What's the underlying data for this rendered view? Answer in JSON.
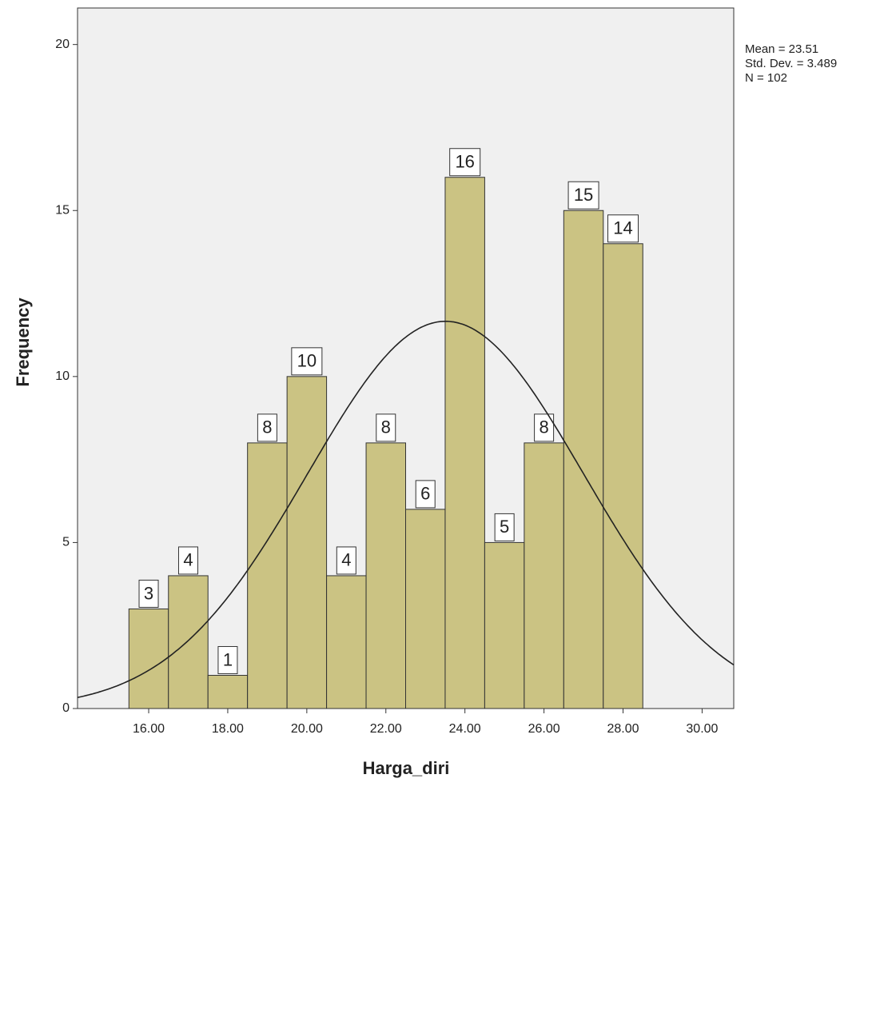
{
  "chart_data": {
    "type": "histogram",
    "x_label": "Harga_diri",
    "y_label": "Frequency",
    "bins": [
      15.5,
      16.5,
      17.5,
      18.5,
      19.5,
      20.5,
      21.5,
      22.5,
      23.5,
      24.5,
      25.5,
      26.5,
      27.5,
      28.5
    ],
    "values": [
      3,
      4,
      1,
      8,
      10,
      4,
      8,
      6,
      16,
      5,
      8,
      15,
      14
    ],
    "color": "#cbc383",
    "xlim": [
      14.2,
      30.8
    ],
    "xticks": [
      {
        "value": 16,
        "label": "16.00"
      },
      {
        "value": 18,
        "label": "18.00"
      },
      {
        "value": 20,
        "label": "20.00"
      },
      {
        "value": 22,
        "label": "22.00"
      },
      {
        "value": 24,
        "label": "24.00"
      },
      {
        "value": 26,
        "label": "26.00"
      },
      {
        "value": 28,
        "label": "28.00"
      },
      {
        "value": 30,
        "label": "30.00"
      }
    ],
    "ylim": [
      0,
      21.1
    ],
    "yticks": [
      0,
      5,
      10,
      15,
      20
    ],
    "annotations": [
      "Mean = 23.51",
      "Std. Dev. = 3.489",
      "N = 102"
    ],
    "normal_curve": {
      "mean": 23.51,
      "sd": 3.489,
      "n": 102
    }
  }
}
